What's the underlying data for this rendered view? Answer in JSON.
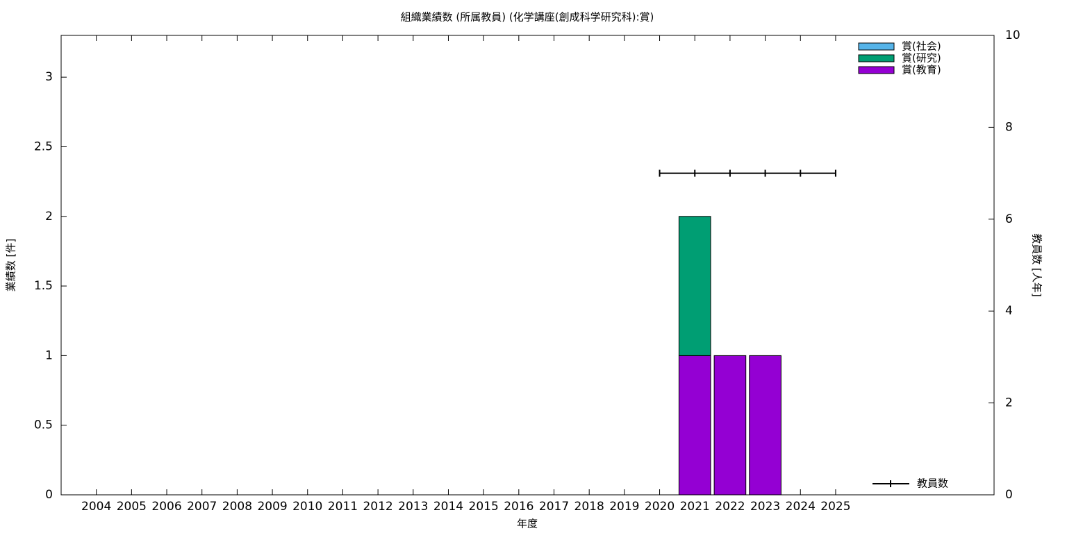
{
  "chart_data": {
    "type": "bar",
    "stacked": true,
    "title": "組織業績数 (所属教員) (化学講座(創成科学研究科):賞)",
    "xlabel": "年度",
    "ylabel": "業績数 [件]",
    "y2label": "教員数 [人年]",
    "categories": [
      "2004",
      "2005",
      "2006",
      "2007",
      "2008",
      "2009",
      "2010",
      "2011",
      "2012",
      "2013",
      "2014",
      "2015",
      "2016",
      "2017",
      "2018",
      "2019",
      "2020",
      "2021",
      "2022",
      "2023",
      "2024",
      "2025"
    ],
    "series": [
      {
        "name": "賞(教育)",
        "color": "#9400d3",
        "values": [
          0,
          0,
          0,
          0,
          0,
          0,
          0,
          0,
          0,
          0,
          0,
          0,
          0,
          0,
          0,
          0,
          0,
          1,
          1,
          1,
          0,
          0
        ]
      },
      {
        "name": "賞(研究)",
        "color": "#009e73",
        "values": [
          0,
          0,
          0,
          0,
          0,
          0,
          0,
          0,
          0,
          0,
          0,
          0,
          0,
          0,
          0,
          0,
          0,
          1,
          0,
          0,
          0,
          0
        ]
      },
      {
        "name": "賞(社会)",
        "color": "#56b4e9",
        "values": [
          0,
          0,
          0,
          0,
          0,
          0,
          0,
          0,
          0,
          0,
          0,
          0,
          0,
          0,
          0,
          0,
          0,
          0,
          0,
          0,
          0,
          0
        ]
      },
      {
        "name": "教員数",
        "color": "#000000",
        "type": "line",
        "axis": "y2",
        "values": [
          null,
          null,
          null,
          null,
          null,
          null,
          null,
          null,
          null,
          null,
          null,
          null,
          null,
          null,
          null,
          null,
          7,
          7,
          7,
          7,
          7,
          7
        ]
      }
    ],
    "ylim": [
      0,
      3.3
    ],
    "yticks": [
      0,
      0.5,
      1,
      1.5,
      2,
      2.5,
      3
    ],
    "y2lim": [
      0,
      10
    ],
    "y2ticks": [
      0,
      2,
      4,
      6,
      8,
      10
    ],
    "legend": "top-right"
  }
}
